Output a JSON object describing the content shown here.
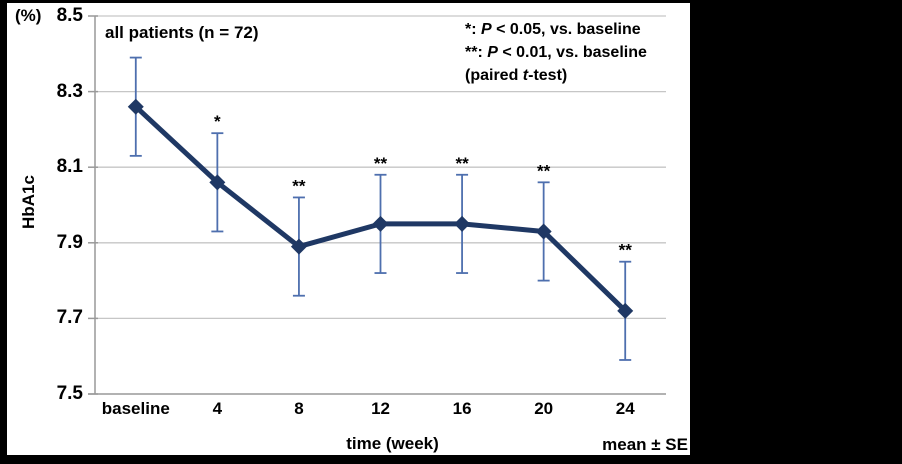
{
  "frame": {
    "background": "#000000",
    "canvas_background": "#ffffff"
  },
  "chart_data": {
    "type": "line",
    "annotation": "all patients (n = 72)",
    "y_unit": "(%)",
    "ylabel": "HbA1c",
    "xlabel": "time (week)",
    "note": "mean ± SE",
    "categories": [
      "baseline",
      "4",
      "8",
      "12",
      "16",
      "20",
      "24"
    ],
    "ytick_labels": [
      "8.5",
      "8.3",
      "8.1",
      "7.9",
      "7.7",
      "7.5"
    ],
    "yticks": [
      8.5,
      8.3,
      8.1,
      7.9,
      7.7,
      7.5
    ],
    "ylim": [
      7.5,
      8.5
    ],
    "grid": "horizontal",
    "series": [
      {
        "name": "HbA1c mean",
        "values": [
          8.26,
          8.06,
          7.89,
          7.95,
          7.95,
          7.93,
          7.72
        ]
      }
    ],
    "se": [
      0.13,
      0.13,
      0.13,
      0.13,
      0.13,
      0.13,
      0.13
    ],
    "significance": [
      "",
      "*",
      "**",
      "**",
      "**",
      "**",
      "**"
    ],
    "legend_lines": [
      {
        "pre": "*: ",
        "italic": "P",
        "post": " < 0.05, vs. baseline"
      },
      {
        "pre": "**: ",
        "italic": "P",
        "post": " < 0.01, vs. baseline"
      },
      {
        "pre": "(paired ",
        "italic": "t",
        "post": "-test)"
      }
    ],
    "colors": {
      "line": "#1f3864",
      "marker": "#1f3864",
      "error_bar": "#4e6fae",
      "gridline": "#c6c6c6",
      "axis": "#999999",
      "text": "#000000"
    }
  }
}
